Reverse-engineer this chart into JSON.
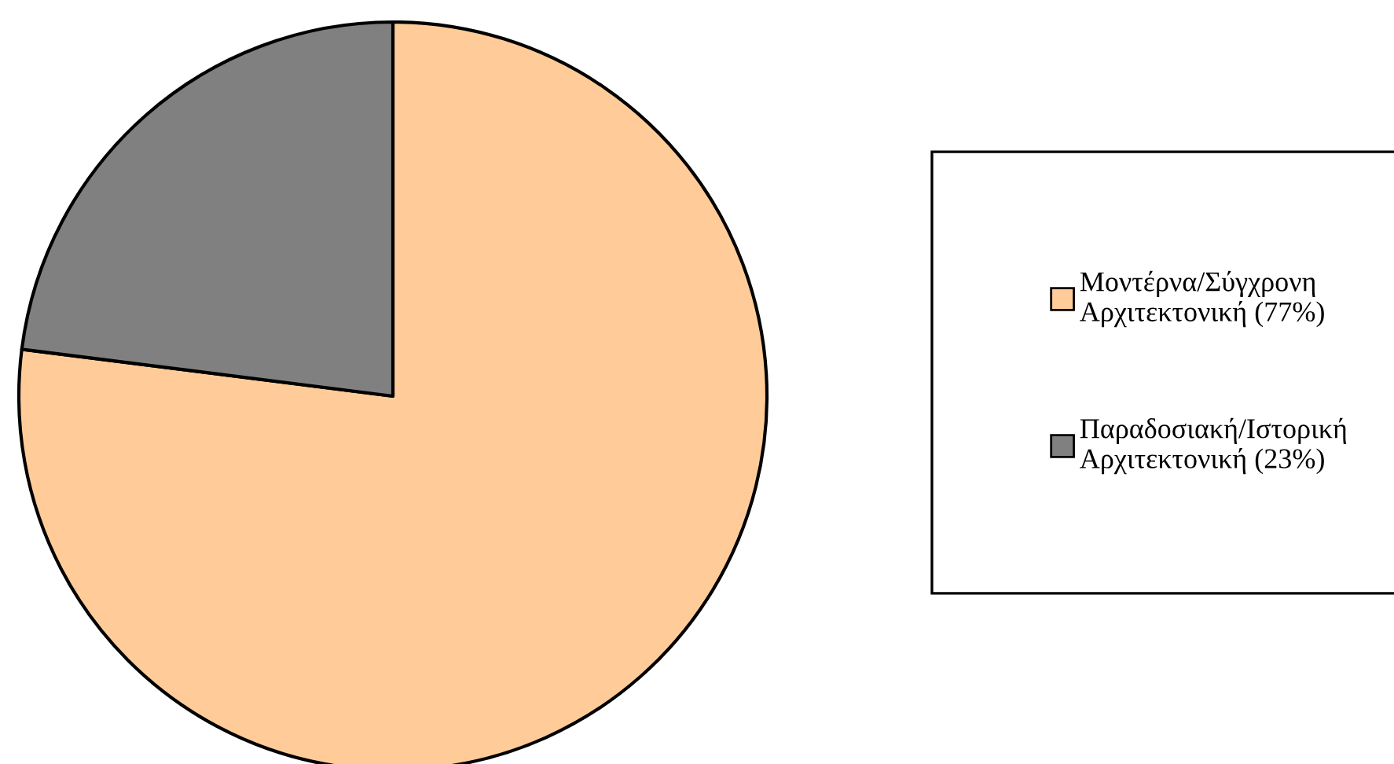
{
  "chart_data": {
    "type": "pie",
    "categories": [
      "Μοντέρνα/Σύγχρονη\nΑρχιτεκτονική (77%)",
      "Παραδοσιακή/Ιστορική\nΑρχιτεκτονική (23%)"
    ],
    "values": [
      77,
      23
    ],
    "colors": [
      "#ffcc99",
      "#808080"
    ],
    "legend": "right"
  }
}
